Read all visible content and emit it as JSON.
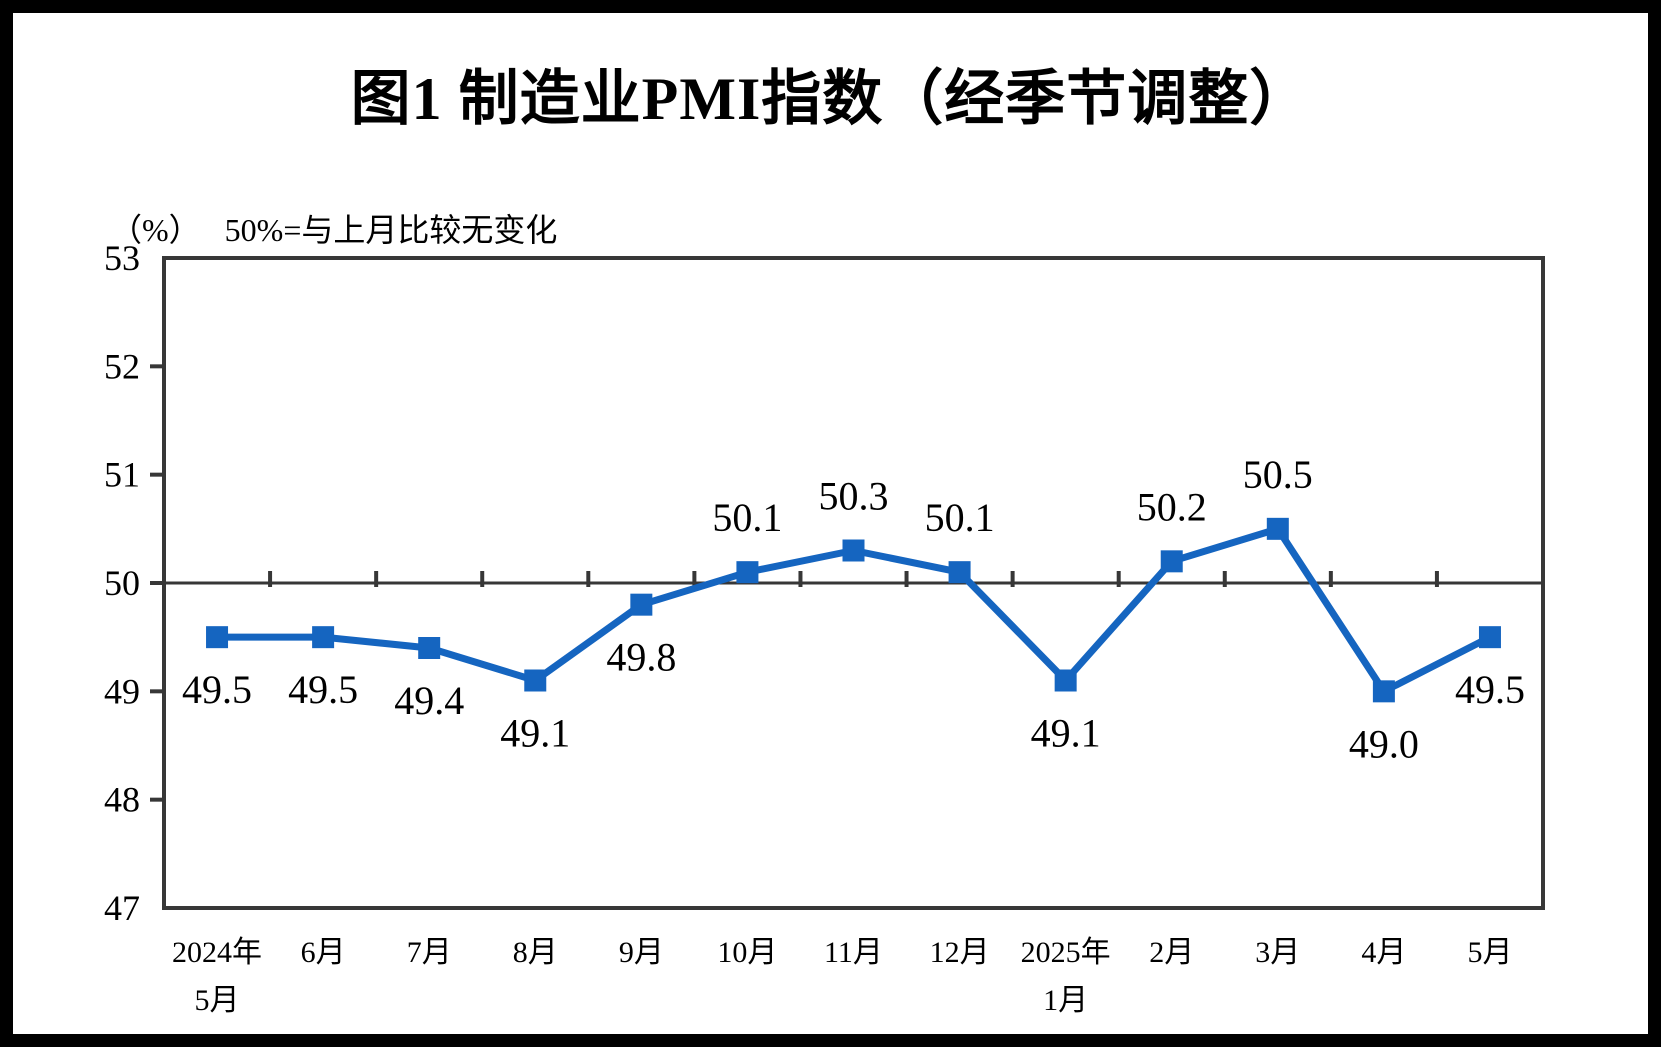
{
  "page": {
    "title": "图1 制造业PMI指数（经季节调整）",
    "unit_label": "（%）",
    "axis_note": "50%=与上月比较无变化"
  },
  "chart_data": {
    "type": "line",
    "title": "图1 制造业PMI指数（经季节调整）",
    "subtitle": "50%=与上月比较无变化",
    "ylabel": "（%）",
    "categories": [
      [
        "2024年",
        "5月"
      ],
      [
        "6月"
      ],
      [
        "7月"
      ],
      [
        "8月"
      ],
      [
        "9月"
      ],
      [
        "10月"
      ],
      [
        "11月"
      ],
      [
        "12月"
      ],
      [
        "2025年",
        "1月"
      ],
      [
        "2月"
      ],
      [
        "3月"
      ],
      [
        "4月"
      ],
      [
        "5月"
      ]
    ],
    "values": [
      49.5,
      49.5,
      49.4,
      49.1,
      49.8,
      50.1,
      50.3,
      50.1,
      49.1,
      50.2,
      50.5,
      49.0,
      49.5
    ],
    "data_labels": [
      "49.5",
      "49.5",
      "49.4",
      "49.1",
      "49.8",
      "50.1",
      "50.3",
      "50.1",
      "49.1",
      "50.2",
      "50.5",
      "49.0",
      "49.5"
    ],
    "ylim": [
      47,
      53
    ],
    "yticks": [
      47,
      48,
      49,
      50,
      51,
      52,
      53
    ],
    "reference_line": 50,
    "grid": "off",
    "legend": "none",
    "marker": "square",
    "line_color": "#1565C0",
    "axis_color": "#373737",
    "label_color": "#000000"
  }
}
